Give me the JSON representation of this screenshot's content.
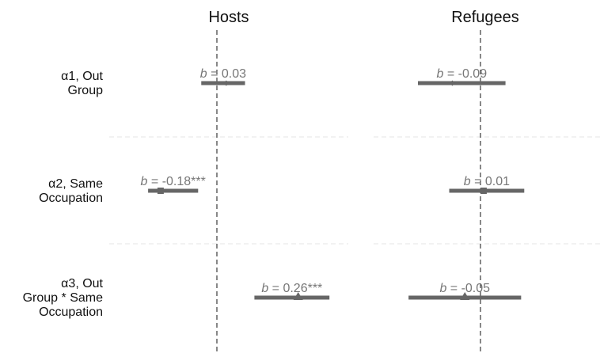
{
  "chart_data": {
    "type": "coefficient-plot",
    "panels": [
      {
        "title": "Hosts",
        "estimates": [
          {
            "row": 0,
            "b": 0.03,
            "lo": -0.05,
            "hi": 0.09,
            "label_suffix": "0.03",
            "marker": "diamond"
          },
          {
            "row": 1,
            "b": -0.18,
            "lo": -0.22,
            "hi": -0.06,
            "label_suffix": "-0.18***",
            "marker": "square"
          },
          {
            "row": 2,
            "b": 0.26,
            "lo": 0.12,
            "hi": 0.36,
            "label_suffix": "0.26***",
            "marker": "triangle"
          }
        ]
      },
      {
        "title": "Refugees",
        "estimates": [
          {
            "row": 0,
            "b": -0.09,
            "lo": -0.2,
            "hi": 0.08,
            "label_suffix": "-0.09",
            "marker": "diamond"
          },
          {
            "row": 1,
            "b": 0.01,
            "lo": -0.1,
            "hi": 0.14,
            "label_suffix": "0.01",
            "marker": "square"
          },
          {
            "row": 2,
            "b": -0.05,
            "lo": -0.23,
            "hi": 0.13,
            "label_suffix": "-0.05",
            "marker": "triangle"
          }
        ]
      }
    ],
    "rows": [
      {
        "label_lines": [
          "α1, Out",
          "Group"
        ]
      },
      {
        "label_lines": [
          "α2, Same",
          "Occupation"
        ]
      },
      {
        "label_lines": [
          "α3, Out",
          "Group * Same",
          "Occupation"
        ]
      }
    ],
    "b_prefix": "b",
    "b_equals": " = ",
    "reference_line": 0,
    "colors": {
      "interval": "#666666",
      "label": "#777777",
      "reference": "#111111",
      "separator": "#e6e6e6"
    }
  }
}
